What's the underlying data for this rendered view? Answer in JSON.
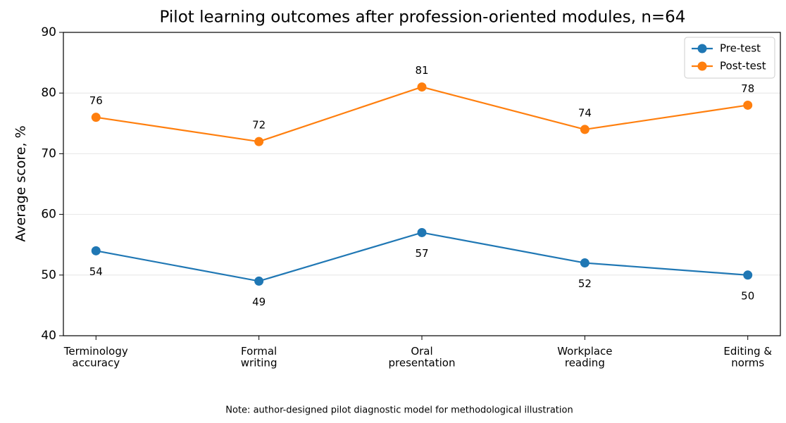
{
  "chart_data": {
    "type": "line",
    "title": "Pilot learning outcomes after profession-oriented modules, n=64",
    "y_label": "Average score, %",
    "note": "Note: author-designed pilot diagnostic model for methodological illustration",
    "categories": [
      "Terminology\naccuracy",
      "Formal\nwriting",
      "Oral\npresentation",
      "Workplace\nreading",
      "Editing &\nnorms"
    ],
    "series": [
      {
        "name": "Pre-test",
        "color": "#1f77b4",
        "values": [
          54,
          49,
          57,
          52,
          50
        ]
      },
      {
        "name": "Post-test",
        "color": "#ff7f0e",
        "values": [
          76,
          72,
          81,
          74,
          78
        ]
      }
    ],
    "ylim": [
      40,
      90
    ],
    "yticks": [
      40,
      50,
      60,
      70,
      80,
      90
    ],
    "grid": true,
    "legend": "upper right"
  }
}
